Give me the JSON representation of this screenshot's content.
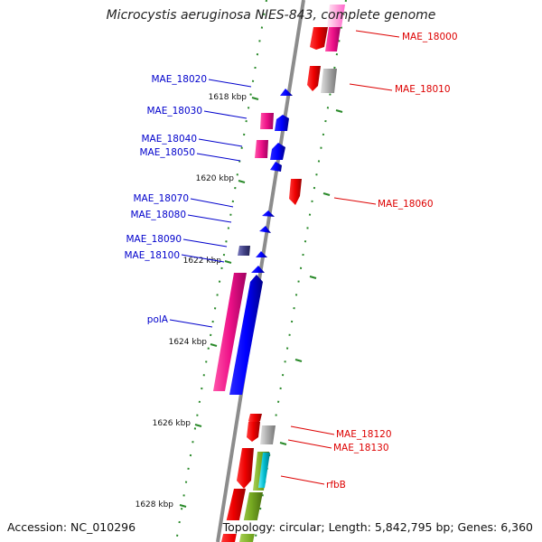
{
  "title": "Microcystis aeruginosa NIES-843, complete genome",
  "footer": {
    "accession": "Accession: NC_010296",
    "topology": "Topology: circular; Length: 5,842,795 bp; Genes: 6,360"
  },
  "colors": {
    "backbone": "#8c8c8c",
    "forward_label": "#0000cc",
    "reverse_label": "#dd0000",
    "ruler": "#2a8a2a",
    "gene_blue": "#0000ff",
    "gene_red": "#ee0000",
    "gene_magenta": "#ee1188",
    "gene_grey": "#aaaaaa",
    "gene_cyan": "#00bbcc",
    "gene_olive": "#77aa22",
    "gene_navy": "#444488",
    "gene_pink": "#ff66cc"
  },
  "kbp_ticks": [
    "1618 kbp",
    "1620 kbp",
    "1622 kbp",
    "1624 kbp",
    "1626 kbp",
    "1628 kbp"
  ],
  "gene_labels_left": [
    "MAE_18020",
    "MAE_18030",
    "MAE_18040",
    "MAE_18050",
    "MAE_18070",
    "MAE_18080",
    "MAE_18090",
    "MAE_18100",
    "polA"
  ],
  "gene_labels_right": [
    "MAE_18000",
    "MAE_18010",
    "MAE_18060",
    "MAE_18120",
    "MAE_18130",
    "rfbB"
  ]
}
